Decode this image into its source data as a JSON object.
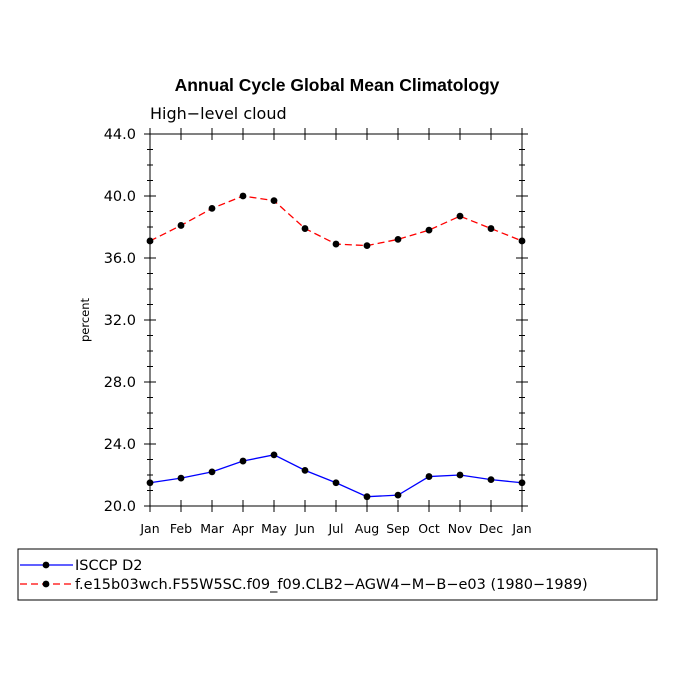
{
  "chart_data": {
    "type": "line",
    "title": "Annual Cycle Global Mean Climatology",
    "subtitle": "High−level cloud",
    "xlabel": "",
    "ylabel": "percent",
    "ylim": [
      20.0,
      44.0
    ],
    "yticks": [
      "20.0",
      "24.0",
      "28.0",
      "32.0",
      "36.0",
      "40.0",
      "44.0"
    ],
    "ytick_values": [
      20,
      24,
      28,
      32,
      36,
      40,
      44
    ],
    "categories": [
      "Jan",
      "Feb",
      "Mar",
      "Apr",
      "May",
      "Jun",
      "Jul",
      "Aug",
      "Sep",
      "Oct",
      "Nov",
      "Dec",
      "Jan"
    ],
    "grid": false,
    "legend_position": "bottom",
    "series": [
      {
        "name": "ISCCP D2",
        "color": "#0000ff",
        "dash": "solid",
        "values": [
          21.5,
          21.8,
          22.2,
          22.9,
          23.3,
          22.3,
          21.5,
          20.6,
          20.7,
          21.9,
          22.0,
          21.7,
          21.5
        ]
      },
      {
        "name": "f.e15b03wch.F55W5SC.f09_f09.CLB2−AGW4−M−B−e03 (1980−1989)",
        "color": "#ff0000",
        "dash": "dashed",
        "values": [
          37.1,
          38.1,
          39.2,
          40.0,
          39.7,
          37.9,
          36.9,
          36.8,
          37.2,
          37.8,
          38.7,
          37.9,
          37.1
        ]
      }
    ]
  }
}
